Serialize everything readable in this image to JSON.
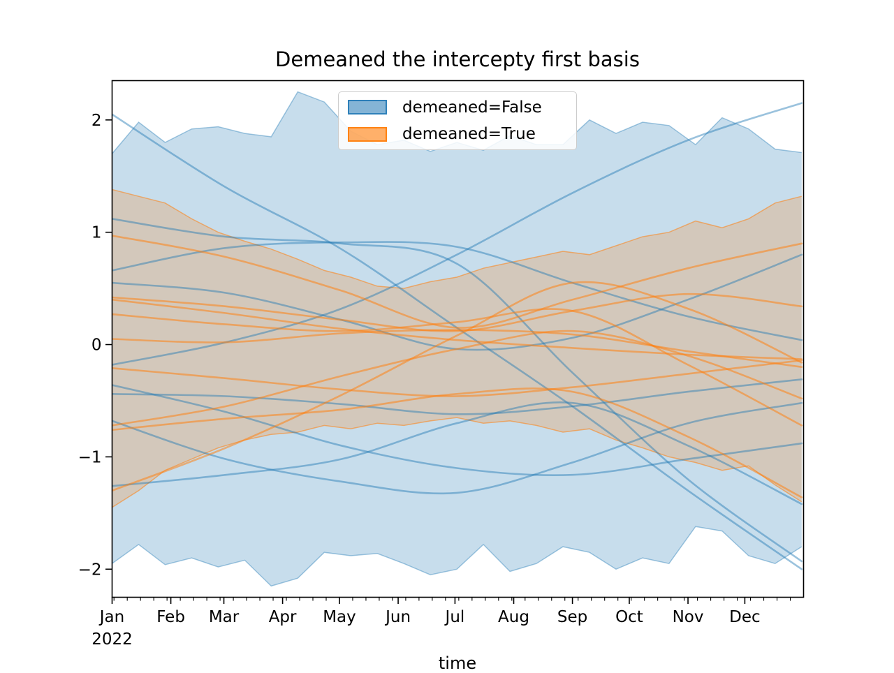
{
  "title": "Demeaned the intercepty first basis",
  "legend": [
    {
      "label": "demeaned=False",
      "color": "#1f77b4"
    },
    {
      "label": "demeaned=True",
      "color": "#ff7f0e"
    }
  ],
  "colors": {
    "blue": "#1f77b4",
    "orange": "#ff7f0e",
    "blue_band_fill": "rgba(31,119,180,0.25)",
    "orange_band_fill": "rgba(255,127,14,0.22)",
    "blue_band_edge": "rgba(31,119,180,0.40)",
    "orange_band_edge": "rgba(255,127,14,0.55)",
    "blue_line": "rgba(31,119,180,0.45)",
    "orange_line": "rgba(255,127,14,0.52)",
    "spine": "#000000"
  },
  "chart_data": {
    "type": "line",
    "title": "Demeaned the intercepty first basis",
    "xlabel": "time",
    "ylabel": "",
    "legend_position": "upper center",
    "grid": false,
    "x_axis": {
      "year_label": "2022",
      "months": [
        "Jan",
        "Feb",
        "Mar",
        "Apr",
        "May",
        "Jun",
        "Jul",
        "Aug",
        "Sep",
        "Oct",
        "Nov",
        "Dec"
      ],
      "month_start_days": [
        0,
        31,
        59,
        90,
        120,
        151,
        181,
        212,
        243,
        273,
        304,
        334
      ],
      "range_days": [
        0,
        365
      ],
      "minor_tick_start_day": 1,
      "minor_tick_interval_days": 7
    },
    "y_axis": {
      "ticks": [
        -2,
        -1,
        0,
        1,
        2
      ],
      "range": [
        -2.25,
        2.35
      ]
    },
    "series_x_days": [
      0,
      60,
      121,
      182,
      243,
      304,
      364
    ],
    "series": [
      {
        "name": "false-1",
        "group": "demeaned=False",
        "values": [
          2.05,
          1.4,
          0.85,
          0.15,
          -0.55,
          -1.3,
          -2.0
        ]
      },
      {
        "name": "false-2",
        "group": "demeaned=False",
        "values": [
          1.12,
          0.96,
          0.9,
          0.72,
          -0.25,
          -1.2,
          -1.93
        ]
      },
      {
        "name": "false-3",
        "group": "demeaned=False",
        "values": [
          0.66,
          0.86,
          0.91,
          0.87,
          0.55,
          0.25,
          0.04
        ]
      },
      {
        "name": "false-4",
        "group": "demeaned=False",
        "values": [
          0.55,
          0.46,
          0.22,
          -0.04,
          0.06,
          0.4,
          0.8
        ]
      },
      {
        "name": "false-5",
        "group": "demeaned=False",
        "values": [
          -0.18,
          0.02,
          0.32,
          0.8,
          1.35,
          1.82,
          2.15
        ]
      },
      {
        "name": "false-6",
        "group": "demeaned=False",
        "values": [
          -0.36,
          -0.6,
          -0.9,
          -1.1,
          -1.16,
          -1.02,
          -0.88
        ]
      },
      {
        "name": "false-7",
        "group": "demeaned=False",
        "values": [
          -0.44,
          -0.46,
          -0.53,
          -0.62,
          -0.55,
          -0.42,
          -0.31
        ]
      },
      {
        "name": "false-8",
        "group": "demeaned=False",
        "values": [
          -0.68,
          -1.02,
          -1.22,
          -1.32,
          -1.05,
          -0.7,
          -0.52
        ]
      },
      {
        "name": "false-9",
        "group": "demeaned=False",
        "values": [
          -1.26,
          -1.16,
          -1.02,
          -0.7,
          -0.52,
          -0.9,
          -1.42
        ]
      },
      {
        "name": "true-1",
        "group": "demeaned=True",
        "values": [
          0.97,
          0.78,
          0.48,
          0.15,
          0.4,
          0.68,
          0.9
        ]
      },
      {
        "name": "true-2",
        "group": "demeaned=True",
        "values": [
          0.42,
          0.34,
          0.22,
          0.12,
          0.3,
          0.45,
          0.34
        ]
      },
      {
        "name": "true-3",
        "group": "demeaned=True",
        "values": [
          0.4,
          0.28,
          0.14,
          0.04,
          -0.03,
          -0.09,
          -0.13
        ]
      },
      {
        "name": "true-4",
        "group": "demeaned=True",
        "values": [
          0.27,
          0.18,
          0.12,
          0.2,
          0.3,
          -0.18,
          -0.72
        ]
      },
      {
        "name": "true-5",
        "group": "demeaned=True",
        "values": [
          0.05,
          0.02,
          0.1,
          0.13,
          0.09,
          -0.06,
          -0.2
        ]
      },
      {
        "name": "true-6",
        "group": "demeaned=True",
        "values": [
          -0.21,
          -0.3,
          -0.4,
          -0.46,
          -0.38,
          -0.26,
          -0.14
        ]
      },
      {
        "name": "true-7",
        "group": "demeaned=True",
        "values": [
          -0.72,
          -0.55,
          -0.28,
          -0.04,
          0.12,
          -0.1,
          -0.48
        ]
      },
      {
        "name": "true-8",
        "group": "demeaned=True",
        "values": [
          -0.76,
          -0.66,
          -0.58,
          -0.44,
          -0.42,
          -0.82,
          -1.36
        ]
      },
      {
        "name": "true-9",
        "group": "demeaned=True",
        "values": [
          -1.3,
          -0.92,
          -0.45,
          0.08,
          0.55,
          0.32,
          -0.16
        ]
      }
    ],
    "bands": {
      "x_days": [
        0,
        14,
        28,
        42,
        56,
        70,
        84,
        98,
        112,
        126,
        140,
        154,
        168,
        182,
        196,
        210,
        224,
        238,
        252,
        266,
        280,
        294,
        308,
        322,
        336,
        350,
        364
      ],
      "blue_upper": [
        1.7,
        1.98,
        1.8,
        1.92,
        1.94,
        1.88,
        1.85,
        2.25,
        2.16,
        1.9,
        1.78,
        1.82,
        1.72,
        1.8,
        1.73,
        1.86,
        1.78,
        1.78,
        2.0,
        1.88,
        1.98,
        1.95,
        1.78,
        2.02,
        1.92,
        1.74,
        1.71
      ],
      "blue_lower": [
        -1.95,
        -1.78,
        -1.96,
        -1.9,
        -1.98,
        -1.92,
        -2.15,
        -2.08,
        -1.85,
        -1.88,
        -1.86,
        -1.95,
        -2.05,
        -2.0,
        -1.78,
        -2.02,
        -1.95,
        -1.8,
        -1.85,
        -2.0,
        -1.9,
        -1.95,
        -1.62,
        -1.66,
        -1.88,
        -1.95,
        -1.8
      ],
      "orange_upper": [
        1.38,
        1.32,
        1.26,
        1.12,
        1.0,
        0.92,
        0.85,
        0.76,
        0.66,
        0.6,
        0.52,
        0.5,
        0.56,
        0.6,
        0.68,
        0.73,
        0.78,
        0.83,
        0.8,
        0.88,
        0.96,
        1.0,
        1.1,
        1.04,
        1.12,
        1.26,
        1.32
      ],
      "orange_lower": [
        -1.45,
        -1.3,
        -1.12,
        -1.02,
        -0.92,
        -0.85,
        -0.8,
        -0.78,
        -0.72,
        -0.75,
        -0.7,
        -0.72,
        -0.68,
        -0.65,
        -0.7,
        -0.68,
        -0.72,
        -0.78,
        -0.75,
        -0.85,
        -0.92,
        -1.0,
        -1.05,
        -1.12,
        -1.08,
        -1.25,
        -1.4
      ]
    }
  }
}
